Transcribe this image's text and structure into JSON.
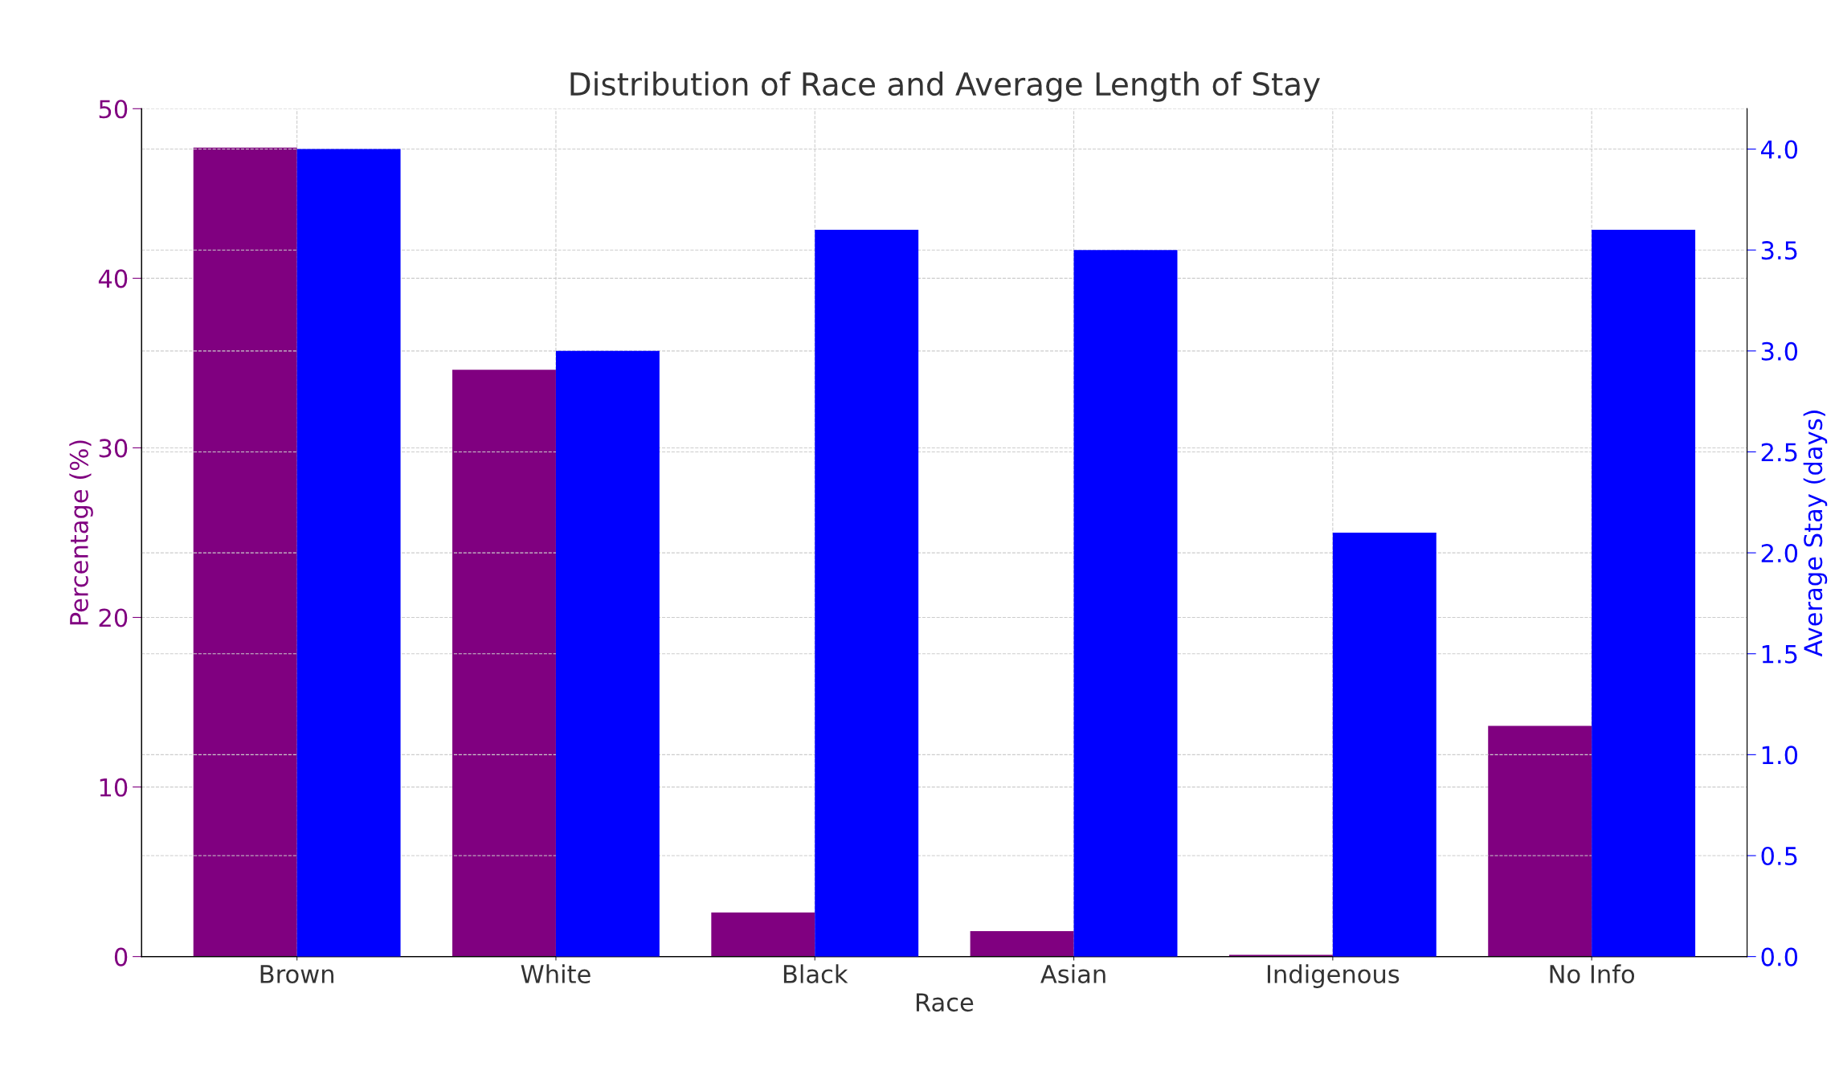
{
  "chart_data": {
    "type": "bar",
    "title": "Distribution of Race and Average Length of Stay",
    "xlabel": "Race",
    "ylabel": "Percentage (%)",
    "y2label": "Average Stay (days)",
    "categories": [
      "Brown",
      "White",
      "Black",
      "Asian",
      "Indigenous",
      "No Info"
    ],
    "series": [
      {
        "color": "#800080",
        "values": [
          47.7,
          34.6,
          2.6,
          1.5,
          0.1,
          13.6
        ]
      },
      {
        "color": "#0000ff",
        "axis": "y2",
        "values": [
          4.0,
          3.0,
          3.6,
          3.5,
          2.1,
          3.6
        ]
      }
    ],
    "ylim": [
      0,
      50
    ],
    "yticks": [
      0,
      10,
      20,
      30,
      40,
      50
    ],
    "y2lim": [
      0,
      4.2
    ],
    "y2ticks": [
      {
        "value": 0,
        "label": "0.0"
      },
      {
        "value": 0.5,
        "label": "0.5"
      },
      {
        "value": 1,
        "label": "1.0"
      },
      {
        "value": 1.5,
        "label": "1.5"
      },
      {
        "value": 2,
        "label": "2.0"
      },
      {
        "value": 2.5,
        "label": "2.5"
      },
      {
        "value": 3,
        "label": "3.0"
      },
      {
        "value": 3.5,
        "label": "3.5"
      },
      {
        "value": 4,
        "label": "4.0"
      }
    ],
    "grid": true,
    "line_style": "dashed"
  }
}
